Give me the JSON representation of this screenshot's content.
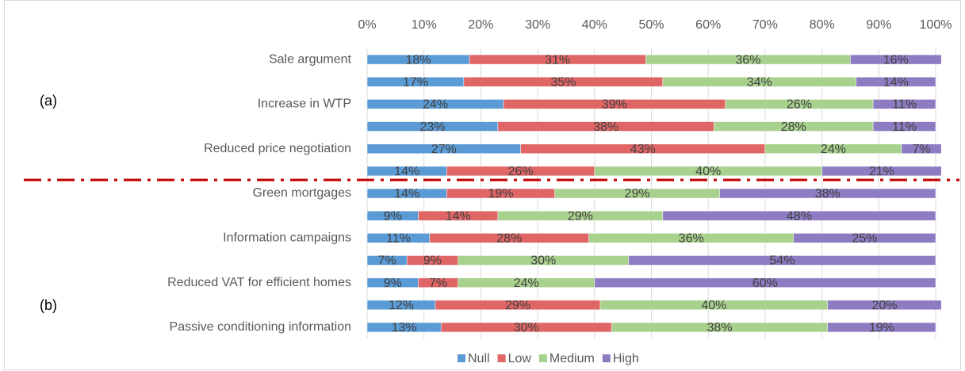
{
  "chart_data": {
    "type": "stacked_barh",
    "categories": [
      "Sale argument",
      null,
      "Increase in WTP",
      null,
      "Reduced price negotiation",
      null,
      "Green mortgages",
      null,
      "Information campaigns",
      null,
      "Reduced VAT for efficient homes",
      null,
      "Passive conditioning information"
    ],
    "series": [
      {
        "name": "Null",
        "color": "#5b9bd5",
        "values": [
          18,
          17,
          24,
          23,
          27,
          14,
          14,
          9,
          11,
          7,
          9,
          12,
          13
        ],
        "value_labels": [
          "18%",
          "17%",
          "24%",
          "23%",
          "27%",
          "14%",
          "14%",
          "9%",
          "11%",
          "7%",
          "9%",
          "12%",
          "13%"
        ]
      },
      {
        "name": "Low",
        "color": "#e06666",
        "values": [
          31,
          35,
          39,
          38,
          43,
          26,
          19,
          14,
          28,
          9,
          7,
          29,
          30
        ],
        "value_labels": [
          "31%",
          "35%",
          "39%",
          "38%",
          "43%",
          "26%",
          "19%",
          "14%",
          "28%",
          "9%",
          "7%",
          "29%",
          "30%"
        ]
      },
      {
        "name": "Medium",
        "color": "#a9d18e",
        "values": [
          36,
          34,
          26,
          28,
          24,
          40,
          29,
          29,
          36,
          30,
          24,
          40,
          38
        ],
        "value_labels": [
          "36%",
          "34%",
          "26%",
          "28%",
          "24%",
          "40%",
          "29%",
          "29%",
          "36%",
          "30%",
          "24%",
          "40%",
          "38%"
        ]
      },
      {
        "name": "High",
        "color": "#8e7cc3",
        "values": [
          16,
          14,
          11,
          11,
          7,
          21,
          38,
          48,
          25,
          54,
          60,
          20,
          19
        ],
        "value_labels": [
          "16%",
          "14%",
          "11%",
          "11%",
          "7%",
          "21%",
          "38%",
          "48%",
          "25%",
          "54%",
          "60%",
          "20%",
          "19%"
        ]
      }
    ],
    "annotations": [
      "(a)",
      "(b)"
    ],
    "xlim": [
      0,
      100
    ],
    "xticks": [
      {
        "value": 0,
        "label": "0%"
      },
      {
        "value": 10,
        "label": "10%"
      },
      {
        "value": 20,
        "label": "20%"
      },
      {
        "value": 30,
        "label": "30%"
      },
      {
        "value": 40,
        "label": "40%"
      },
      {
        "value": 50,
        "label": "50%"
      },
      {
        "value": 60,
        "label": "60%"
      },
      {
        "value": 70,
        "label": "70%"
      },
      {
        "value": 80,
        "label": "80%"
      },
      {
        "value": 90,
        "label": "90%"
      },
      {
        "value": 100,
        "label": "100%"
      }
    ],
    "grid": true,
    "legend": "bottom"
  }
}
